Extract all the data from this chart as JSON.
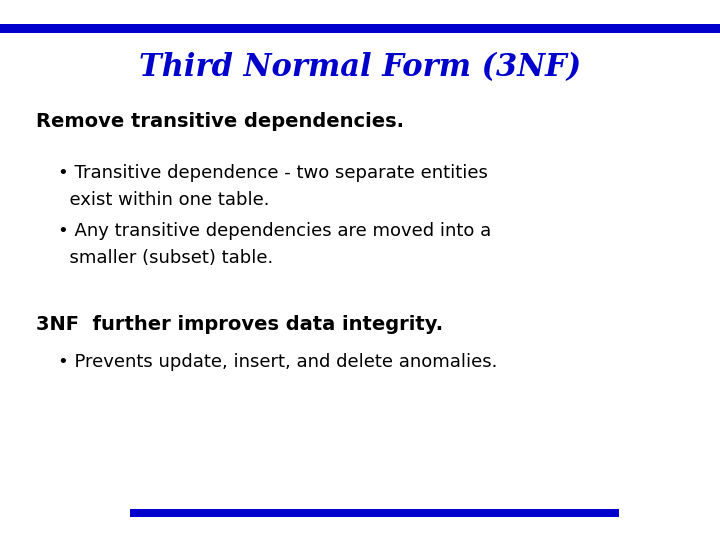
{
  "title": "Third Normal Form (3NF)",
  "title_color": "#0000CC",
  "title_fontsize": 22,
  "title_style": "italic",
  "title_weight": "bold",
  "background_color": "#FFFFFF",
  "top_bar_color": "#0000CC",
  "bottom_bar_color": "#0000CC",
  "subtitle": "Remove transitive dependencies.",
  "subtitle_fontsize": 14,
  "subtitle_weight": "bold",
  "subtitle_color": "#000000",
  "bullet1_line1": "• Transitive dependence - two separate entities",
  "bullet1_line2": "  exist within one table.",
  "bullet2_line1": "• Any transitive dependencies are moved into a",
  "bullet2_line2": "  smaller (subset) table.",
  "bullet_fontsize": 13,
  "bullet_color": "#000000",
  "section2_text": "3NF  further improves data integrity.",
  "section2_fontsize": 14,
  "section2_weight": "bold",
  "section2_color": "#000000",
  "bullet3_line1": "• Prevents update, insert, and delete anomalies.",
  "bullet3_fontsize": 13,
  "bullet3_color": "#000000"
}
